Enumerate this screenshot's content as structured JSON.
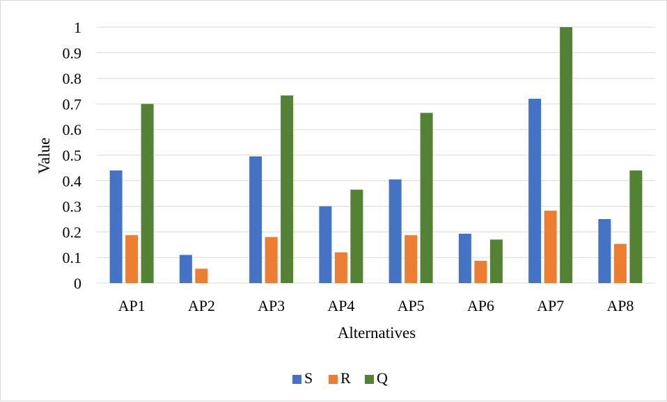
{
  "chart_data": {
    "type": "bar",
    "title": "",
    "xlabel": "Alternatives",
    "ylabel": "Value",
    "categories": [
      "AP1",
      "AP2",
      "AP3",
      "AP4",
      "AP5",
      "AP6",
      "AP7",
      "AP8"
    ],
    "ylim": [
      0,
      1
    ],
    "yticks": [
      "0",
      "0.1",
      "0.2",
      "0.3",
      "0.4",
      "0.5",
      "0.6",
      "0.7",
      "0.8",
      "0.9",
      "1"
    ],
    "grid": true,
    "legend_position": "bottom",
    "series": [
      {
        "name": "S",
        "color": "#4472C4",
        "values": [
          0.44,
          0.11,
          0.495,
          0.3,
          0.405,
          0.193,
          0.72,
          0.25
        ]
      },
      {
        "name": "R",
        "color": "#ED7D31",
        "values": [
          0.187,
          0.056,
          0.18,
          0.12,
          0.187,
          0.087,
          0.283,
          0.153
        ]
      },
      {
        "name": "Q",
        "color": "#548235",
        "values": [
          0.7,
          0.0,
          0.733,
          0.365,
          0.665,
          0.17,
          1.0,
          0.44
        ]
      }
    ]
  }
}
